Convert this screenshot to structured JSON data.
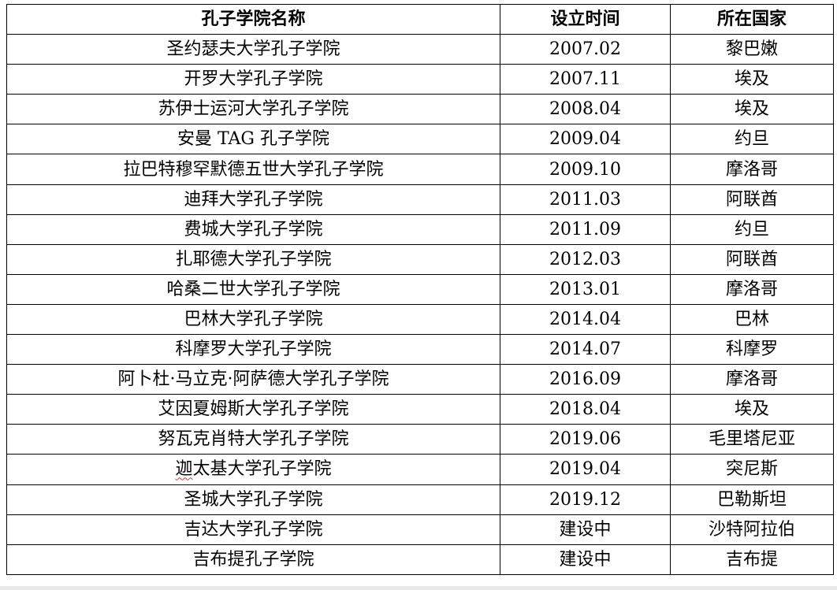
{
  "table": {
    "headers": [
      "孔子学院名称",
      "设立时间",
      "所在国家"
    ],
    "rows": [
      [
        "圣约瑟夫大学孔子学院",
        "2007.02",
        "黎巴嫩"
      ],
      [
        "开罗大学孔子学院",
        "2007.11",
        "埃及"
      ],
      [
        "苏伊士运河大学孔子学院",
        "2008.04",
        "埃及"
      ],
      [
        "安曼 TAG 孔子学院",
        "2009.04",
        "约旦"
      ],
      [
        "拉巴特穆罕默德五世大学孔子学院",
        "2009.10",
        "摩洛哥"
      ],
      [
        "迪拜大学孔子学院",
        "2011.03",
        "阿联酋"
      ],
      [
        "费城大学孔子学院",
        "2011.09",
        "约旦"
      ],
      [
        "扎耶德大学孔子学院",
        "2012.03",
        "阿联酋"
      ],
      [
        "哈桑二世大学孔子学院",
        "2013.01",
        "摩洛哥"
      ],
      [
        "巴林大学孔子学院",
        "2014.04",
        "巴林"
      ],
      [
        "科摩罗大学孔子学院",
        "2014.07",
        "科摩罗"
      ],
      [
        "阿卜杜·马立克·阿萨德大学孔子学院",
        "2016.09",
        "摩洛哥"
      ],
      [
        "艾因夏姆斯大学孔子学院",
        "2018.04",
        "埃及"
      ],
      [
        "努瓦克肖特大学孔子学院",
        "2019.06",
        "毛里塔尼亚"
      ],
      [
        "迦太基大学孔子学院",
        "2019.04",
        "突尼斯"
      ],
      [
        "圣城大学孔子学院",
        "2019.12",
        "巴勒斯坦"
      ],
      [
        "吉达大学孔子学院",
        "建设中",
        "沙特阿拉伯"
      ],
      [
        "吉布提孔子学院",
        "建设中",
        "吉布提"
      ]
    ]
  }
}
